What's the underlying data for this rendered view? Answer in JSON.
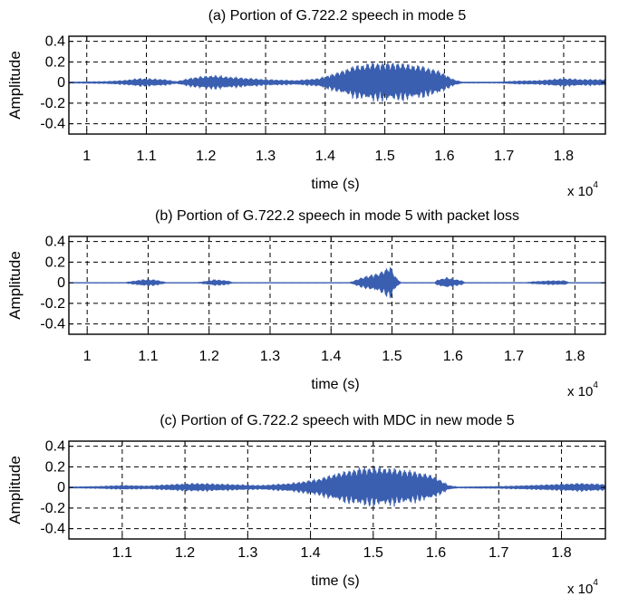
{
  "chart_data": [
    {
      "type": "line",
      "title": "(a) Portion of G.722.2 speech in mode 5",
      "xlabel": "time (s)",
      "ylabel": "Amplitude",
      "x_multiplier": "x 10",
      "x_multiplier_exp": "4",
      "xlim": [
        9700,
        18700
      ],
      "ylim": [
        -0.5,
        0.45
      ],
      "xticks": [
        10000,
        11000,
        12000,
        13000,
        14000,
        15000,
        16000,
        17000,
        18000
      ],
      "xtick_labels": [
        "1",
        "1.1",
        "1.2",
        "1.3",
        "1.4",
        "1.5",
        "1.6",
        "1.7",
        "1.8"
      ],
      "yticks": [
        0.4,
        0.2,
        0,
        -0.2,
        -0.4
      ],
      "ytick_labels": [
        "0.4",
        "0.2",
        "0",
        "-0.2",
        "-0.4"
      ],
      "grid": true,
      "series": [
        {
          "envelope": [
            [
              9700,
              0.005
            ],
            [
              10300,
              0.01
            ],
            [
              10600,
              0.02
            ],
            [
              10900,
              0.04
            ],
            [
              11300,
              0.03
            ],
            [
              11500,
              0.01
            ],
            [
              11800,
              0.05
            ],
            [
              12100,
              0.07
            ],
            [
              12500,
              0.05
            ],
            [
              13000,
              0.03
            ],
            [
              13500,
              0.02
            ],
            [
              13900,
              0.04
            ],
            [
              14200,
              0.1
            ],
            [
              14500,
              0.17
            ],
            [
              14800,
              0.2
            ],
            [
              15200,
              0.2
            ],
            [
              15600,
              0.17
            ],
            [
              15900,
              0.12
            ],
            [
              16150,
              0.03
            ],
            [
              16300,
              0.005
            ],
            [
              16900,
              0.005
            ],
            [
              17200,
              0.015
            ],
            [
              17600,
              0.02
            ],
            [
              18000,
              0.04
            ],
            [
              18300,
              0.03
            ],
            [
              18700,
              0.03
            ]
          ]
        }
      ]
    },
    {
      "type": "line",
      "title": "(b) Portion of G.722.2 speech in mode 5 with packet loss",
      "xlabel": "time (s)",
      "ylabel": "Amplitude",
      "x_multiplier": "x 10",
      "x_multiplier_exp": "4",
      "xlim": [
        9700,
        18500
      ],
      "ylim": [
        -0.5,
        0.45
      ],
      "xticks": [
        10000,
        11000,
        12000,
        13000,
        14000,
        15000,
        16000,
        17000,
        18000
      ],
      "xtick_labels": [
        "1",
        "1.1",
        "1.2",
        "1.3",
        "1.4",
        "1.5",
        "1.6",
        "1.7",
        "1.8"
      ],
      "yticks": [
        0.4,
        0.2,
        0,
        -0.2,
        -0.4
      ],
      "ytick_labels": [
        "0.4",
        "0.2",
        "0",
        "-0.2",
        "-0.4"
      ],
      "grid": true,
      "series": [
        {
          "envelope": [
            [
              9700,
              0
            ],
            [
              10600,
              0
            ],
            [
              10700,
              0.01
            ],
            [
              10900,
              0.03
            ],
            [
              11100,
              0.03
            ],
            [
              11250,
              0.01
            ],
            [
              11300,
              0
            ],
            [
              11800,
              0
            ],
            [
              11900,
              0.01
            ],
            [
              12100,
              0.03
            ],
            [
              12300,
              0.02
            ],
            [
              12400,
              0
            ],
            [
              14300,
              0
            ],
            [
              14500,
              0.05
            ],
            [
              14800,
              0.1
            ],
            [
              14980,
              0.17
            ],
            [
              15050,
              0.06
            ],
            [
              15150,
              0
            ],
            [
              15700,
              0
            ],
            [
              15750,
              0.03
            ],
            [
              15900,
              0.05
            ],
            [
              16150,
              0.02
            ],
            [
              16200,
              0
            ],
            [
              17200,
              0
            ],
            [
              17300,
              0.01
            ],
            [
              17600,
              0.02
            ],
            [
              17850,
              0.02
            ],
            [
              17900,
              0
            ],
            [
              18500,
              0
            ]
          ]
        }
      ]
    },
    {
      "type": "line",
      "title": "(c) Portion of G.722.2 speech with MDC in new mode 5",
      "xlabel": "time (s)",
      "ylabel": "Amplitude",
      "x_multiplier": "x 10",
      "x_multiplier_exp": "4",
      "xlim": [
        10150,
        18700
      ],
      "ylim": [
        -0.5,
        0.45
      ],
      "xticks": [
        11000,
        12000,
        13000,
        14000,
        15000,
        16000,
        17000,
        18000
      ],
      "xtick_labels": [
        "1.1",
        "1.2",
        "1.3",
        "1.4",
        "1.5",
        "1.6",
        "1.7",
        "1.8"
      ],
      "yticks": [
        0.4,
        0.2,
        0,
        -0.2,
        -0.4
      ],
      "ytick_labels": [
        "0.4",
        "0.2",
        "0",
        "-0.2",
        "-0.4"
      ],
      "grid": true,
      "series": [
        {
          "envelope": [
            [
              10150,
              0.005
            ],
            [
              10600,
              0.01
            ],
            [
              11000,
              0.02
            ],
            [
              11400,
              0.015
            ],
            [
              11800,
              0.03
            ],
            [
              12200,
              0.04
            ],
            [
              12700,
              0.03
            ],
            [
              13200,
              0.02
            ],
            [
              13700,
              0.04
            ],
            [
              14100,
              0.08
            ],
            [
              14400,
              0.14
            ],
            [
              14800,
              0.2
            ],
            [
              15200,
              0.2
            ],
            [
              15600,
              0.17
            ],
            [
              15950,
              0.12
            ],
            [
              16200,
              0.02
            ],
            [
              16350,
              0.005
            ],
            [
              17000,
              0.01
            ],
            [
              17500,
              0.02
            ],
            [
              17900,
              0.03
            ],
            [
              18300,
              0.04
            ],
            [
              18700,
              0.03
            ]
          ]
        }
      ]
    }
  ]
}
